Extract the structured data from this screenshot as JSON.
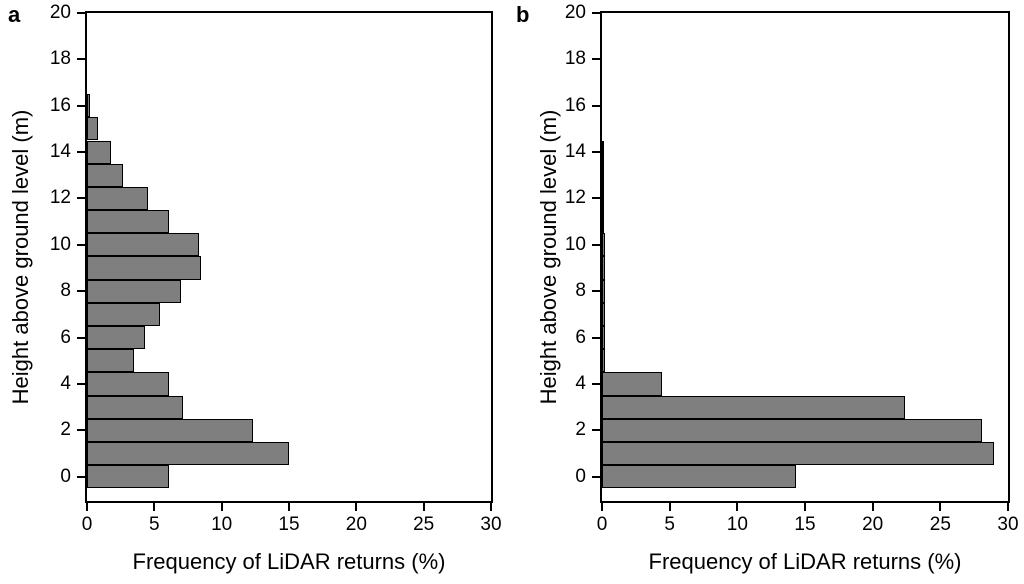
{
  "figure": {
    "background_color": "#ffffff",
    "bar_fill_color": "#7f7f7f",
    "bar_outline_color": "#000000",
    "axis_color": "#000000"
  },
  "chart_data": [
    {
      "type": "bar",
      "orientation": "horizontal",
      "panel_label": "a",
      "xlabel": "Frequency of LiDAR returns (%)",
      "ylabel": "Height above ground level (m)",
      "xlim": [
        0,
        30
      ],
      "ylim": [
        -1.05,
        20
      ],
      "xticks": [
        0,
        5,
        10,
        15,
        20,
        25,
        30
      ],
      "yticks": [
        0,
        2,
        4,
        6,
        8,
        10,
        12,
        14,
        16,
        18,
        20
      ],
      "bin_width_m": 1,
      "bin_centers": [
        0,
        1,
        2,
        3,
        4,
        5,
        6,
        7,
        8,
        9,
        10,
        11,
        12,
        13,
        14,
        15,
        16
      ],
      "values": [
        6.1,
        15.0,
        12.3,
        7.1,
        6.1,
        3.5,
        4.3,
        5.4,
        7.0,
        8.5,
        8.3,
        6.1,
        4.5,
        2.7,
        1.8,
        0.8,
        0.2
      ],
      "grid": false,
      "legend": null
    },
    {
      "type": "bar",
      "orientation": "horizontal",
      "panel_label": "b",
      "xlabel": "Frequency of LiDAR returns (%)",
      "ylabel": "Height above ground level (m)",
      "xlim": [
        0,
        30
      ],
      "ylim": [
        -1.05,
        20
      ],
      "xticks": [
        0,
        5,
        10,
        15,
        20,
        25,
        30
      ],
      "yticks": [
        0,
        2,
        4,
        6,
        8,
        10,
        12,
        14,
        16,
        18,
        20
      ],
      "bin_width_m": 1,
      "bin_centers": [
        0,
        1,
        2,
        3,
        4,
        5,
        6,
        7,
        8,
        9,
        10,
        11,
        12,
        13,
        14
      ],
      "values": [
        14.3,
        29.0,
        28.1,
        22.4,
        4.4,
        0.2,
        0.2,
        0.2,
        0.2,
        0.2,
        0.2,
        0.1,
        0.1,
        0.1,
        0.1
      ],
      "grid": false,
      "legend": null
    }
  ]
}
